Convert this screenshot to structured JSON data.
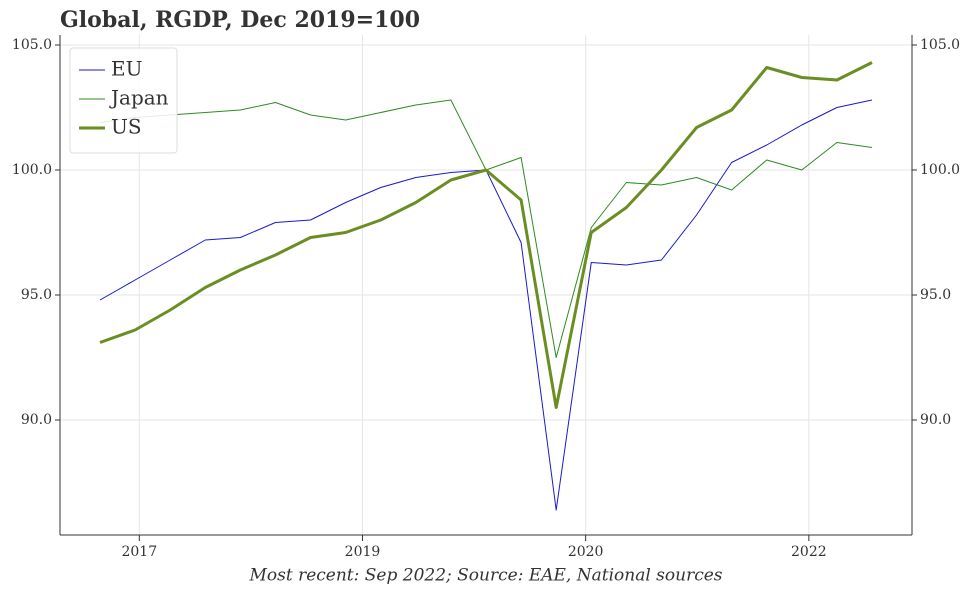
{
  "chart_data": {
    "type": "line",
    "title": "Global, RGDP, Dec 2019=100",
    "caption": "Most recent: Sep 2022; Source: EAE, National sources",
    "x": [
      2017.0,
      2017.25,
      2017.5,
      2017.75,
      2018.0,
      2018.25,
      2018.5,
      2018.75,
      2019.0,
      2019.25,
      2019.5,
      2019.75,
      2020.0,
      2020.25,
      2020.5,
      2020.75,
      2021.0,
      2021.25,
      2021.5,
      2021.75,
      2022.0,
      2022.25,
      2022.5
    ],
    "series": [
      {
        "name": "EU",
        "color": "#1a1acc",
        "width": 1,
        "values": [
          94.8,
          95.6,
          96.4,
          97.2,
          97.3,
          97.9,
          98.0,
          98.7,
          99.3,
          99.7,
          99.9,
          100.0,
          97.1,
          86.4,
          96.3,
          96.2,
          96.4,
          98.2,
          100.3,
          101.0,
          101.8,
          102.5,
          102.8
        ]
      },
      {
        "name": "Japan",
        "color": "#2e8b22",
        "width": 1,
        "values": [
          101.9,
          102.1,
          102.2,
          102.3,
          102.4,
          102.7,
          102.2,
          102.0,
          102.3,
          102.6,
          102.8,
          100.0,
          100.5,
          92.5,
          97.7,
          99.5,
          99.4,
          99.7,
          99.2,
          100.4,
          100.0,
          101.1,
          100.9
        ]
      },
      {
        "name": "US",
        "color": "#6b8e23",
        "width": 3,
        "values": [
          93.1,
          93.6,
          94.4,
          95.3,
          96.0,
          96.6,
          97.3,
          97.5,
          98.0,
          98.7,
          99.6,
          100.0,
          98.8,
          90.5,
          97.5,
          98.5,
          100.0,
          101.7,
          102.4,
          104.1,
          103.7,
          103.6,
          104.3
        ]
      }
    ],
    "xlim": [
      2016.715,
      2022.785
    ],
    "xticks": [
      {
        "value": 2017.28,
        "label": "2017"
      },
      {
        "value": 2018.87,
        "label": "2019"
      },
      {
        "value": 2020.46,
        "label": "2020"
      },
      {
        "value": 2022.05,
        "label": "2022"
      }
    ],
    "ylim": [
      85.4,
      105.4
    ],
    "yticks": [
      {
        "value": 90,
        "label": "90.0"
      },
      {
        "value": 95,
        "label": "95.0"
      },
      {
        "value": 100,
        "label": "100.0"
      },
      {
        "value": 105,
        "label": "105.0"
      }
    ],
    "grid": true,
    "legend": "upper left"
  }
}
